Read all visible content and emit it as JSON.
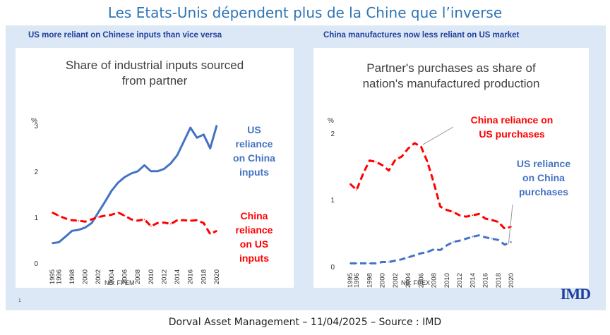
{
  "page_title": "Les Etats-Unis dépendent plus de la Chine que l’inverse",
  "footer": "Dorval Asset Management – 11/04/2025 – Source : IMD",
  "logo": "IMD",
  "small_mark": "1",
  "colors": {
    "blue": "#4472c4",
    "red": "#ff0000",
    "title_blue": "#2e74b5",
    "panel_bg": "#dce8f5",
    "header_blue": "#1f3f9e"
  },
  "left": {
    "panel_title": "US more reliant on Chinese inputs than vice versa",
    "chart_title_lines": [
      "Share of industrial inputs sourced",
      "from partner"
    ],
    "unit": "%",
    "note": "NB: FPEM",
    "annotation_blue": [
      "US",
      "reliance",
      "on China",
      "inputs"
    ],
    "annotation_red": [
      "China",
      "reliance",
      "on US",
      "inputs"
    ]
  },
  "right": {
    "panel_title": "China manufactures now less reliant on US market",
    "chart_title_lines": [
      "Partner's purchases as share of",
      "nation's manufactured production"
    ],
    "unit": "%",
    "note": "NB: FPEX",
    "annotation_red": [
      "China reliance on",
      "US purchases"
    ],
    "annotation_blue": [
      "US reliance",
      "on China",
      "purchases"
    ]
  },
  "chart_data": [
    {
      "type": "line",
      "title": "Share of industrial inputs sourced from partner",
      "ylabel": "%",
      "ylim": [
        0,
        3.2
      ],
      "yticks": [
        "0",
        "1",
        "2",
        "3"
      ],
      "xtick_labels": [
        "1995",
        "1996",
        "1998",
        "2000",
        "2002",
        "2004",
        "2006",
        "2008",
        "2010",
        "2012",
        "2014",
        "2016",
        "2018",
        "2020"
      ],
      "x": [
        1995,
        1996,
        1997,
        1998,
        1999,
        2000,
        2001,
        2002,
        2003,
        2004,
        2005,
        2006,
        2007,
        2008,
        2009,
        2010,
        2011,
        2012,
        2013,
        2014,
        2015,
        2016,
        2017,
        2018,
        2019,
        2020
      ],
      "series": [
        {
          "name": "US reliance on China inputs",
          "color": "#4472c4",
          "dash": "solid",
          "values": [
            0.48,
            0.5,
            0.62,
            0.75,
            0.77,
            0.82,
            0.92,
            1.15,
            1.38,
            1.62,
            1.8,
            1.92,
            2.0,
            2.05,
            2.18,
            2.05,
            2.05,
            2.1,
            2.22,
            2.4,
            2.7,
            3.0,
            2.78,
            2.85,
            2.55,
            3.05
          ]
        },
        {
          "name": "China reliance on US inputs",
          "color": "#ff0000",
          "dash": "dashed",
          "values": [
            1.15,
            1.08,
            1.02,
            0.98,
            0.97,
            0.95,
            1.0,
            1.05,
            1.08,
            1.1,
            1.15,
            1.08,
            1.0,
            0.97,
            1.0,
            0.85,
            0.92,
            0.93,
            0.9,
            0.98,
            0.98,
            0.97,
            0.98,
            0.92,
            0.68,
            0.75
          ]
        }
      ]
    },
    {
      "type": "line",
      "title": "Partner's purchases as share of nation's manufactured production",
      "ylabel": "%",
      "ylim": [
        0,
        2.25
      ],
      "yticks": [
        "0",
        "1",
        "2"
      ],
      "xtick_labels": [
        "1995",
        "1996",
        "1998",
        "2000",
        "2002",
        "2004",
        "2006",
        "2008",
        "2010",
        "2012",
        "2014",
        "2016",
        "2018",
        "2020"
      ],
      "x": [
        1995,
        1996,
        1997,
        1998,
        1999,
        2000,
        2001,
        2002,
        2003,
        2004,
        2005,
        2006,
        2007,
        2008,
        2009,
        2010,
        2011,
        2012,
        2013,
        2014,
        2015,
        2016,
        2017,
        2018,
        2019,
        2020
      ],
      "series": [
        {
          "name": "China reliance on US purchases",
          "color": "#ff0000",
          "dash": "dashed",
          "values": [
            1.27,
            1.18,
            1.42,
            1.62,
            1.6,
            1.55,
            1.47,
            1.63,
            1.68,
            1.8,
            1.88,
            1.83,
            1.6,
            1.28,
            0.93,
            0.88,
            0.85,
            0.8,
            0.78,
            0.8,
            0.82,
            0.75,
            0.73,
            0.7,
            0.6,
            0.63
          ]
        },
        {
          "name": "US reliance on China purchases",
          "color": "#4472c4",
          "dash": "dashed",
          "values": [
            0.08,
            0.08,
            0.08,
            0.08,
            0.08,
            0.1,
            0.1,
            0.12,
            0.14,
            0.17,
            0.2,
            0.23,
            0.25,
            0.29,
            0.28,
            0.35,
            0.4,
            0.42,
            0.45,
            0.48,
            0.5,
            0.47,
            0.45,
            0.43,
            0.36,
            0.4
          ]
        }
      ]
    }
  ]
}
